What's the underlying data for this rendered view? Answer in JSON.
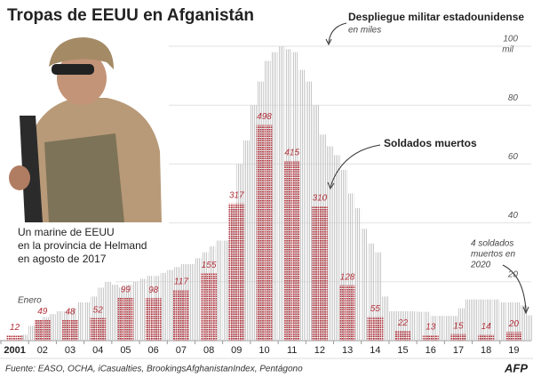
{
  "chart_data": {
    "type": "bar",
    "title": "Tropas de EEUU en Afganistán",
    "xlim": [
      2001,
      2020
    ],
    "xticks": [
      {
        "value": 2001,
        "label": "2001"
      },
      {
        "value": 2002,
        "label": "02"
      },
      {
        "value": 2003,
        "label": "03"
      },
      {
        "value": 2004,
        "label": "04"
      },
      {
        "value": 2005,
        "label": "05"
      },
      {
        "value": 2006,
        "label": "06"
      },
      {
        "value": 2007,
        "label": "07"
      },
      {
        "value": 2008,
        "label": "08"
      },
      {
        "value": 2009,
        "label": "09"
      },
      {
        "value": 2010,
        "label": "10"
      },
      {
        "value": 2011,
        "label": "11"
      },
      {
        "value": 2012,
        "label": "12"
      },
      {
        "value": 2013,
        "label": "13"
      },
      {
        "value": 2014,
        "label": "14"
      },
      {
        "value": 2015,
        "label": "15"
      },
      {
        "value": 2016,
        "label": "16"
      },
      {
        "value": 2017,
        "label": "17"
      },
      {
        "value": 2018,
        "label": "18"
      },
      {
        "value": 2019,
        "label": "19"
      }
    ],
    "ylim": [
      0,
      100
    ],
    "yticks": [
      20,
      40,
      60,
      80,
      100
    ],
    "y_unit": "mil",
    "units_note": "en miles",
    "y2lim": [
      0,
      680
    ],
    "grid": true,
    "series": [
      {
        "name": "Despliegue militar estadounidense",
        "color": "#c8c8c8",
        "x": [
          2001.75,
          2002,
          2002.25,
          2002.5,
          2002.75,
          2003,
          2003.25,
          2003.5,
          2003.75,
          2004,
          2004.25,
          2004.5,
          2004.75,
          2005,
          2005.25,
          2005.5,
          2005.75,
          2006,
          2006.25,
          2006.5,
          2006.75,
          2007,
          2007.25,
          2007.5,
          2007.75,
          2008,
          2008.25,
          2008.5,
          2008.75,
          2009,
          2009.25,
          2009.5,
          2009.75,
          2010,
          2010.25,
          2010.5,
          2010.75,
          2011,
          2011.25,
          2011.5,
          2011.75,
          2012,
          2012.25,
          2012.5,
          2012.75,
          2013,
          2013.25,
          2013.5,
          2013.75,
          2014,
          2014.25,
          2014.5,
          2014.75,
          2015,
          2015.25,
          2015.5,
          2015.75,
          2016,
          2016.25,
          2016.5,
          2016.75,
          2017,
          2017.25,
          2017.5,
          2017.75,
          2018,
          2018.25,
          2018.5,
          2018.75,
          2019,
          2019.25,
          2019.5,
          2019.75,
          2020
        ],
        "values": [
          2,
          5,
          7,
          8,
          9,
          10,
          10,
          11,
          13,
          13,
          15,
          18,
          20,
          19,
          18,
          19,
          20,
          21,
          22,
          22,
          23,
          24,
          25,
          26,
          26,
          28,
          30,
          32,
          34,
          34,
          45,
          60,
          68,
          80,
          88,
          95,
          98,
          100,
          99,
          98,
          92,
          88,
          80,
          70,
          66,
          63,
          58,
          50,
          45,
          38,
          33,
          30,
          15,
          10,
          10,
          10,
          10,
          9.8,
          9.8,
          8.4,
          8.4,
          8.4,
          8.4,
          11,
          14,
          14,
          14,
          14,
          14,
          13,
          13,
          13,
          12,
          8.6
        ]
      },
      {
        "name": "Soldados muertos",
        "color": "#b3303a",
        "axis": "y2",
        "x": [
          2001,
          2002,
          2003,
          2004,
          2005,
          2006,
          2007,
          2008,
          2009,
          2010,
          2011,
          2012,
          2013,
          2014,
          2015,
          2016,
          2017,
          2018,
          2019
        ],
        "values": [
          12,
          49,
          48,
          52,
          99,
          98,
          117,
          155,
          317,
          498,
          415,
          310,
          128,
          55,
          22,
          13,
          15,
          14,
          20
        ]
      }
    ],
    "annotations": {
      "photo_caption": [
        "Un marine de EEUU",
        "en la provincia de Helmand",
        "en agosto de 2017"
      ],
      "start": "Enero",
      "deaths_2020": [
        "4 soldados",
        "muertos en",
        "2020"
      ]
    },
    "source": "Fuente: EASO, OCHA, iCasualties, BrookingsAfghanistanIndex, Pentágono",
    "logo": "AFP"
  }
}
